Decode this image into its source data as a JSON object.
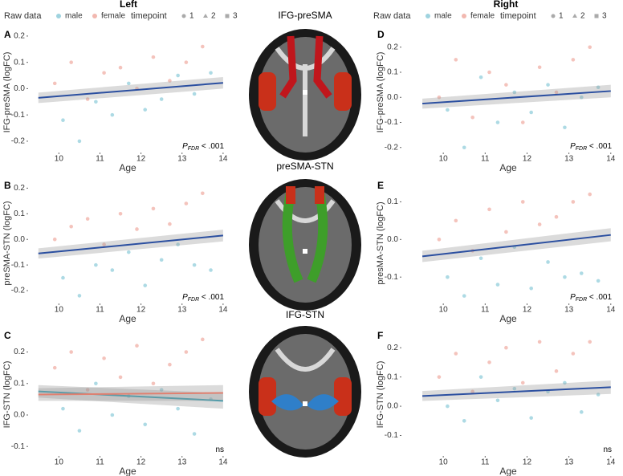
{
  "columns": [
    "Left",
    "Right"
  ],
  "legend": {
    "raw_title": "Raw data",
    "sexes": [
      "male",
      "female"
    ],
    "time_title": "timepoint",
    "timepoints": [
      "1",
      "2",
      "3"
    ]
  },
  "brain_titles": [
    "IFG-preSMA",
    "preSMA-STN",
    "IFG-STN"
  ],
  "chart_data": [
    {
      "type": "scatter",
      "panel": "A",
      "xlabel": "Age",
      "ylabel": "IFG-preSMA (logFC)",
      "xlim": [
        9.25,
        14.1
      ],
      "xticks": [
        10,
        11,
        12,
        13,
        14
      ],
      "ylim": [
        -0.243,
        0.215
      ],
      "yticks": [
        -0.2,
        -0.1,
        {
          "value": 0,
          "label": "0.0"
        },
        0.1,
        0.2
      ],
      "annotation": {
        "p": "P",
        "sub": "FDR",
        "text": " < .001"
      },
      "series": [
        {
          "name": "male",
          "color": "#9fd3df",
          "x": [
            10.1,
            10.5,
            10.9,
            11.3,
            11.7,
            12.1,
            12.5,
            12.9,
            13.3,
            13.7
          ],
          "values": [
            -0.12,
            -0.2,
            -0.05,
            -0.1,
            0.02,
            -0.08,
            -0.04,
            0.05,
            -0.02,
            0.06
          ]
        },
        {
          "name": "female",
          "color": "#f2b8b0",
          "x": [
            9.9,
            10.3,
            10.7,
            11.1,
            11.5,
            11.9,
            12.3,
            12.7,
            13.1,
            13.5
          ],
          "values": [
            0.02,
            0.1,
            -0.04,
            0.06,
            0.08,
            0.0,
            0.12,
            0.03,
            0.1,
            0.16
          ]
        }
      ],
      "fits": [
        {
          "color": "#2b4fa0",
          "x": [
            9.5,
            14
          ],
          "values": [
            -0.035,
            0.022
          ],
          "lower": [
            -0.055,
            0.0
          ],
          "upper": [
            -0.015,
            0.044
          ]
        }
      ]
    },
    {
      "type": "scatter",
      "panel": "B",
      "xlabel": "Age",
      "ylabel": "preSMA-STN (logFC)",
      "xlim": [
        9.25,
        14.1
      ],
      "xticks": [
        10,
        11,
        12,
        13,
        14
      ],
      "ylim": [
        -0.25,
        0.22
      ],
      "yticks": [
        -0.2,
        -0.1,
        {
          "value": 0,
          "label": "0.0"
        },
        0.1,
        0.2
      ],
      "annotation": {
        "p": "P",
        "sub": "FDR",
        "text": " < .001"
      },
      "series": [
        {
          "name": "male",
          "color": "#9fd3df",
          "x": [
            10.1,
            10.5,
            10.9,
            11.3,
            11.7,
            12.1,
            12.5,
            12.9,
            13.3,
            13.7
          ],
          "values": [
            -0.15,
            -0.22,
            -0.1,
            -0.12,
            -0.05,
            -0.18,
            -0.08,
            -0.02,
            -0.1,
            -0.12
          ]
        },
        {
          "name": "female",
          "color": "#f2b8b0",
          "x": [
            9.9,
            10.3,
            10.7,
            11.1,
            11.5,
            11.9,
            12.3,
            12.7,
            13.1,
            13.5
          ],
          "values": [
            0.0,
            0.05,
            0.08,
            -0.02,
            0.1,
            0.04,
            0.12,
            0.06,
            0.14,
            0.18
          ]
        }
      ],
      "fits": [
        {
          "color": "#2b4fa0",
          "x": [
            9.5,
            14
          ],
          "values": [
            -0.055,
            0.015
          ],
          "lower": [
            -0.075,
            -0.008
          ],
          "upper": [
            -0.035,
            0.038
          ]
        }
      ]
    },
    {
      "type": "scatter",
      "panel": "C",
      "xlabel": "Age",
      "ylabel": "IFG-STN (logFC)",
      "xlim": [
        9.25,
        14.1
      ],
      "xticks": [
        10,
        11,
        12,
        13,
        14
      ],
      "ylim": [
        -0.13,
        0.26
      ],
      "yticks": [
        -0.1,
        {
          "value": 0,
          "label": "0.0"
        },
        0.1,
        0.2
      ],
      "annotation": {
        "text": "ns"
      },
      "series": [
        {
          "name": "male",
          "color": "#9fd3df",
          "x": [
            10.1,
            10.5,
            10.9,
            11.3,
            11.7,
            12.1,
            12.5,
            12.9,
            13.3,
            13.7
          ],
          "values": [
            0.02,
            -0.05,
            0.1,
            0.0,
            0.06,
            -0.03,
            0.08,
            0.02,
            -0.06,
            0.05
          ]
        },
        {
          "name": "female",
          "color": "#f2b8b0",
          "x": [
            9.9,
            10.3,
            10.7,
            11.1,
            11.5,
            11.9,
            12.3,
            12.7,
            13.1,
            13.5
          ],
          "values": [
            0.15,
            0.2,
            0.08,
            0.18,
            0.12,
            0.22,
            0.1,
            0.16,
            0.2,
            0.24
          ]
        }
      ],
      "fits": [
        {
          "color": "#3d9db0",
          "x": [
            9.5,
            14
          ],
          "values": [
            0.075,
            0.045
          ],
          "lower": [
            0.055,
            0.02
          ],
          "upper": [
            0.095,
            0.07
          ]
        },
        {
          "color": "#e08070",
          "x": [
            9.5,
            14
          ],
          "values": [
            0.065,
            0.07
          ],
          "lower": [
            0.045,
            0.045
          ],
          "upper": [
            0.085,
            0.095
          ]
        }
      ]
    },
    {
      "type": "scatter",
      "panel": "D",
      "xlabel": "Age",
      "ylabel": "IFG-preSMA (logFC)",
      "xlim": [
        9.0,
        14.1
      ],
      "xticks": [
        10,
        11,
        12,
        13,
        14
      ],
      "ylim": [
        -0.22,
        0.26
      ],
      "yticks": [
        -0.2,
        -0.1,
        {
          "value": 0,
          "label": "0.0"
        },
        0.1,
        0.2
      ],
      "annotation": {
        "p": "P",
        "sub": "FDR",
        "text": " < .001"
      },
      "series": [
        {
          "name": "male",
          "color": "#9fd3df",
          "x": [
            10.1,
            10.5,
            10.9,
            11.3,
            11.7,
            12.1,
            12.5,
            12.9,
            13.3,
            13.7
          ],
          "values": [
            -0.05,
            -0.2,
            0.08,
            -0.1,
            0.02,
            -0.06,
            0.05,
            -0.12,
            0.0,
            0.04
          ]
        },
        {
          "name": "female",
          "color": "#f2b8b0",
          "x": [
            9.9,
            10.3,
            10.7,
            11.1,
            11.5,
            11.9,
            12.3,
            12.7,
            13.1,
            13.5
          ],
          "values": [
            0.0,
            0.15,
            -0.08,
            0.1,
            0.05,
            -0.1,
            0.12,
            0.02,
            0.15,
            0.2
          ]
        }
      ],
      "fits": [
        {
          "color": "#2b4fa0",
          "x": [
            9.5,
            14
          ],
          "values": [
            -0.025,
            0.025
          ],
          "lower": [
            -0.045,
            0.0
          ],
          "upper": [
            -0.005,
            0.05
          ]
        }
      ]
    },
    {
      "type": "scatter",
      "panel": "E",
      "xlabel": "Age",
      "ylabel": "presMA-STN (logFC)",
      "xlim": [
        9.0,
        14.1
      ],
      "xticks": [
        10,
        11,
        12,
        13,
        14
      ],
      "ylim": [
        -0.17,
        0.15
      ],
      "yticks": [
        -0.1,
        {
          "value": 0,
          "label": "0.0"
        },
        0.1
      ],
      "annotation": {
        "p": "P",
        "sub": "FDR",
        "text": " < .001"
      },
      "series": [
        {
          "name": "male",
          "color": "#9fd3df",
          "x": [
            10.1,
            10.5,
            10.9,
            11.3,
            11.7,
            12.1,
            12.5,
            12.9,
            13.3,
            13.7
          ],
          "values": [
            -0.1,
            -0.15,
            -0.05,
            -0.12,
            -0.02,
            -0.13,
            -0.06,
            -0.1,
            -0.09,
            -0.11
          ]
        },
        {
          "name": "female",
          "color": "#f2b8b0",
          "x": [
            9.9,
            10.3,
            10.7,
            11.1,
            11.5,
            11.9,
            12.3,
            12.7,
            13.1,
            13.5
          ],
          "values": [
            0.0,
            0.05,
            -0.03,
            0.08,
            0.02,
            0.1,
            0.04,
            0.06,
            0.1,
            0.12
          ]
        }
      ],
      "fits": [
        {
          "color": "#2b4fa0",
          "x": [
            9.5,
            14
          ],
          "values": [
            -0.045,
            0.012
          ],
          "lower": [
            -0.06,
            -0.005
          ],
          "upper": [
            -0.03,
            0.03
          ]
        }
      ]
    },
    {
      "type": "scatter",
      "panel": "F",
      "xlabel": "Age",
      "ylabel": "IFG-STN (logFC)",
      "xlim": [
        9.0,
        14.1
      ],
      "xticks": [
        10,
        11,
        12,
        13,
        14
      ],
      "ylim": [
        -0.17,
        0.25
      ],
      "yticks": [
        -0.1,
        {
          "value": 0,
          "label": "0.0"
        },
        0.1,
        0.2
      ],
      "annotation": {
        "text": "ns"
      },
      "series": [
        {
          "name": "male",
          "color": "#9fd3df",
          "x": [
            10.1,
            10.5,
            10.9,
            11.3,
            11.7,
            12.1,
            12.5,
            12.9,
            13.3,
            13.7
          ],
          "values": [
            0.0,
            -0.05,
            0.1,
            0.02,
            0.06,
            -0.04,
            0.05,
            0.08,
            -0.02,
            0.04
          ]
        },
        {
          "name": "female",
          "color": "#f2b8b0",
          "x": [
            9.9,
            10.3,
            10.7,
            11.1,
            11.5,
            11.9,
            12.3,
            12.7,
            13.1,
            13.5
          ],
          "values": [
            0.1,
            0.18,
            0.05,
            0.15,
            0.2,
            0.08,
            0.22,
            0.12,
            0.18,
            0.22
          ]
        }
      ],
      "fits": [
        {
          "color": "#2b4fa0",
          "x": [
            9.5,
            14
          ],
          "values": [
            0.035,
            0.065
          ],
          "lower": [
            0.018,
            0.042
          ],
          "upper": [
            0.052,
            0.088
          ]
        }
      ]
    }
  ]
}
